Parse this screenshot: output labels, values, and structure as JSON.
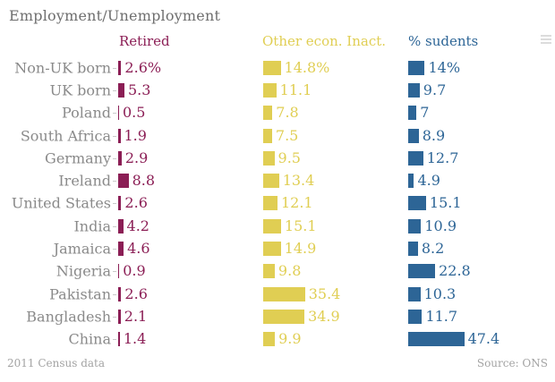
{
  "header": {
    "title": "Employment/Unemployment"
  },
  "columns": [
    {
      "label": "Retired",
      "color": "#8B1E55"
    },
    {
      "label": "Other econ. Inact.",
      "color": "#E0CE53"
    },
    {
      "label": "% sudents",
      "color": "#2D6596"
    }
  ],
  "chart_data": {
    "type": "bar",
    "orientation": "horizontal",
    "title": "Employment/Unemployment",
    "value_axis": "hidden",
    "unit": "%",
    "categories": [
      "Non-UK born",
      "UK born",
      "Poland",
      "South Africa",
      "Germany",
      "Ireland",
      "United States",
      "India",
      "Jamaica",
      "Nigeria",
      "Pakistan",
      "Bangladesh",
      "China"
    ],
    "series": [
      {
        "name": "Retired",
        "color": "#8B1E55",
        "values": [
          2.6,
          5.3,
          0.5,
          1.9,
          2.9,
          8.8,
          2.6,
          4.2,
          4.6,
          0.9,
          2.6,
          2.1,
          1.4
        ],
        "labels": [
          "2.6%",
          "5.3",
          "0.5",
          "1.9",
          "2.9",
          "8.8",
          "2.6",
          "4.2",
          "4.6",
          "0.9",
          "2.6",
          "2.1",
          "1.4"
        ]
      },
      {
        "name": "Other econ. Inact.",
        "color": "#E0CE53",
        "values": [
          14.8,
          11.1,
          7.8,
          7.5,
          9.5,
          13.4,
          12.1,
          15.1,
          14.9,
          9.8,
          35.4,
          34.9,
          9.9
        ],
        "labels": [
          "14.8%",
          "11.1",
          "7.8",
          "7.5",
          "9.5",
          "13.4",
          "12.1",
          "15.1",
          "14.9",
          "9.8",
          "35.4",
          "34.9",
          "9.9"
        ]
      },
      {
        "name": "% sudents",
        "color": "#2D6596",
        "values": [
          14,
          9.7,
          7,
          8.9,
          12.7,
          4.9,
          15.1,
          10.9,
          8.2,
          22.8,
          10.3,
          11.7,
          47.4
        ],
        "labels": [
          "14%",
          "9.7",
          "7",
          "8.9",
          "12.7",
          "4.9",
          "15.1",
          "10.9",
          "8.2",
          "22.8",
          "10.3",
          "11.7",
          "47.4"
        ]
      }
    ]
  },
  "footer": {
    "note": "2011 Census data",
    "source": "Source: ONS"
  },
  "icons": {
    "menu": "menu-icon"
  },
  "colors": {
    "retired": "#8B1E55",
    "other_inact": "#E0CE53",
    "students": "#2D6596",
    "title_gray": "#6E6E6E",
    "label_gray": "#8A8A8A",
    "footer_gray": "#A3A3A3",
    "tick_gray": "#C9C9C9",
    "background": "#FFFFFF"
  }
}
